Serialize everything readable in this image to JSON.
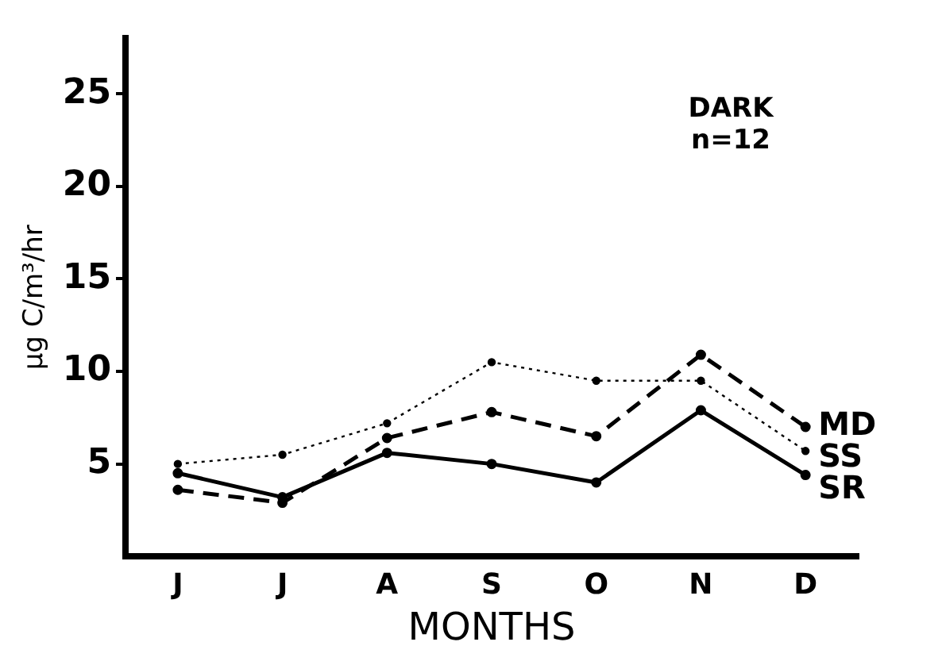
{
  "chart_data": {
    "type": "line",
    "xlabel": "MONTHS",
    "ylabel": "µg C/m³/hr",
    "categories": [
      "J",
      "J",
      "A",
      "S",
      "O",
      "N",
      "D"
    ],
    "ylim": [
      0,
      28
    ],
    "yticks": [
      5,
      10,
      15,
      20,
      25
    ],
    "grid": false,
    "legend": false,
    "marker": "circle",
    "annotations": [
      "DARK",
      "n=12"
    ],
    "series": [
      {
        "name": "MD",
        "color": "#000000",
        "line_style": "dashed",
        "values": [
          3.6,
          2.9,
          6.4,
          7.8,
          6.5,
          10.9,
          7.0
        ]
      },
      {
        "name": "SS",
        "color": "#000000",
        "line_style": "dotted",
        "values": [
          5.0,
          5.5,
          7.2,
          10.5,
          9.5,
          9.5,
          5.7
        ]
      },
      {
        "name": "SR",
        "color": "#000000",
        "line_style": "solid",
        "values": [
          4.5,
          3.2,
          5.6,
          5.0,
          4.0,
          7.9,
          4.4
        ]
      }
    ]
  }
}
